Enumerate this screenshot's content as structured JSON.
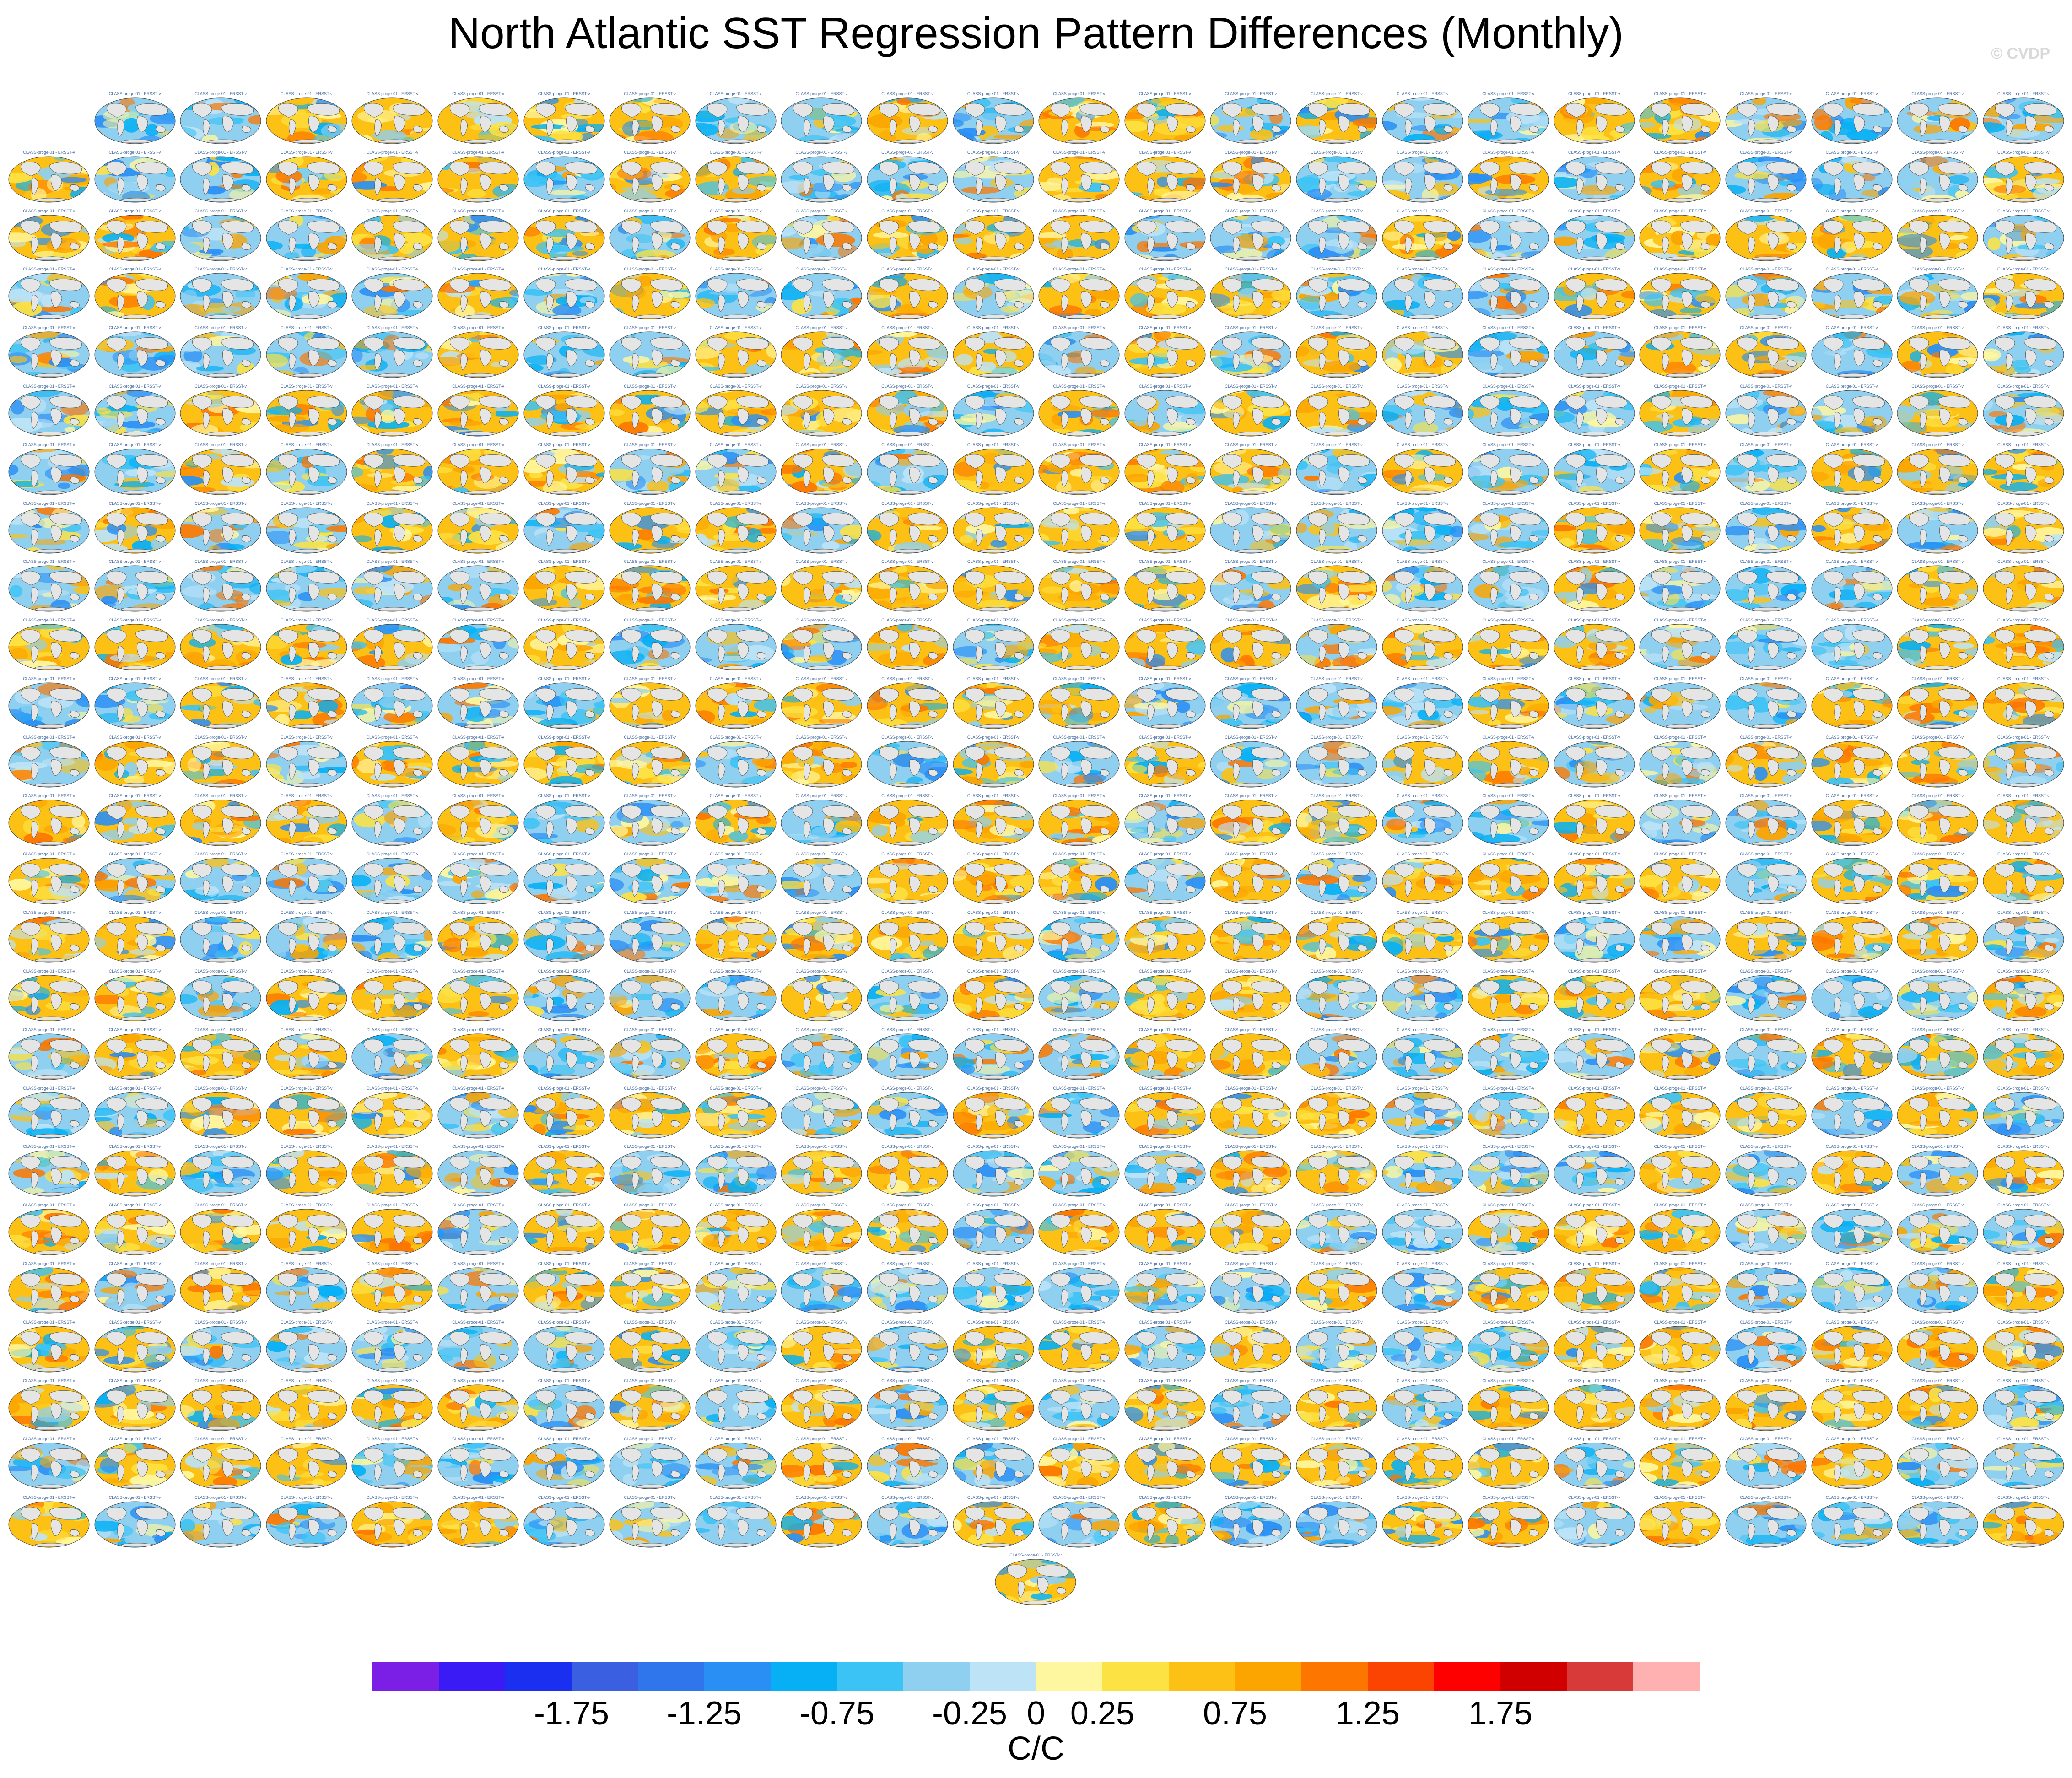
{
  "title": "North Atlantic SST Regression Pattern Differences (Monthly)",
  "watermark": "© CVDP",
  "panels": {
    "rows": 25,
    "columns": 24,
    "panel_title": "CLASS-proge-01 - ERSST-v",
    "first_row_empty_cells": 1,
    "last_row_centered_panels": 1,
    "ocean_field": "SST regression pattern difference",
    "land_color": "#e5e5e5"
  },
  "colorbar": {
    "colors": [
      "#7b1fe6",
      "#3b1bf5",
      "#1a2ff0",
      "#3a5fe0",
      "#2f75ec",
      "#2a8ff5",
      "#07b0f5",
      "#3cc3f5",
      "#8fd0f0",
      "#bde3f7",
      "#fff7a0",
      "#fde243",
      "#fcc114",
      "#fca400",
      "#fd7700",
      "#fb4302",
      "#ff0000",
      "#d00000",
      "#d83a3a",
      "#ffb0b0"
    ],
    "labels": [
      "-1.75",
      "-1.25",
      "-0.75",
      "-0.25",
      "0",
      "0.25",
      "0.75",
      "1.25",
      "1.75"
    ],
    "units": "C/C"
  }
}
